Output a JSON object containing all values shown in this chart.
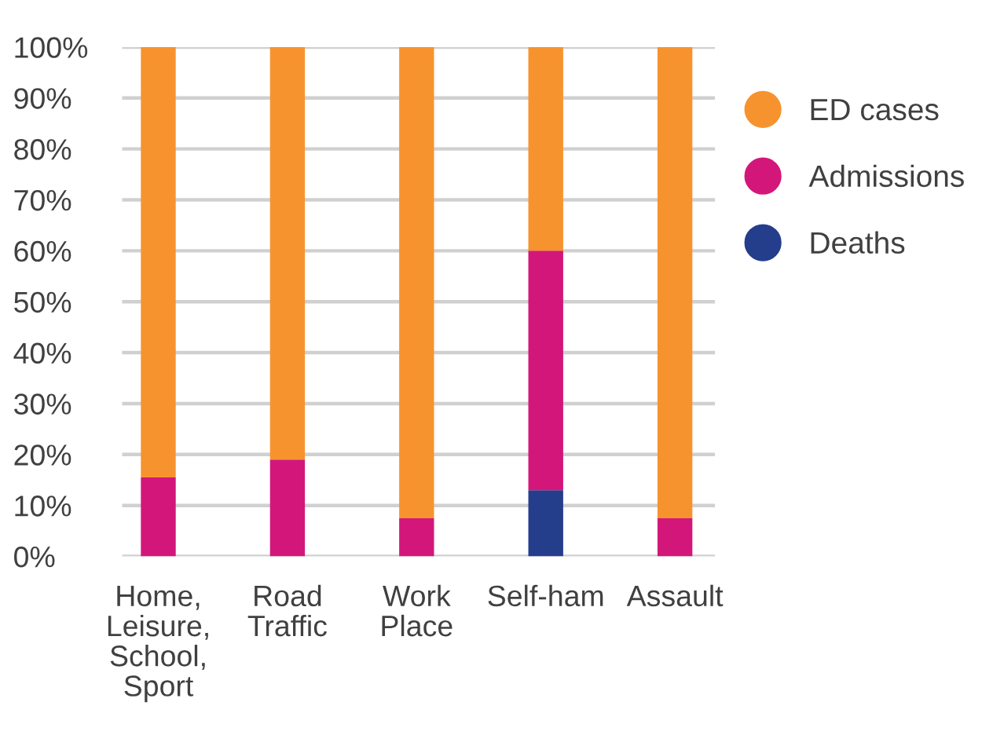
{
  "chart_data": {
    "type": "bar",
    "stacked": true,
    "categories": [
      "Home, Leisure, School, Sport",
      "Road Traffic",
      "Work Place",
      "Self-ham",
      "Assault"
    ],
    "series": [
      {
        "name": "Deaths",
        "color": "#243e8c",
        "values": [
          null,
          null,
          null,
          13,
          null
        ]
      },
      {
        "name": "Admissions",
        "color": "#d3177a",
        "values": [
          15.5,
          19,
          7.5,
          47,
          7.5
        ]
      },
      {
        "name": "ED cases",
        "color": "#f7932f",
        "values": [
          84.5,
          81,
          92.5,
          40,
          92.5
        ]
      }
    ],
    "ylim": [
      0,
      100
    ],
    "yticks": [
      {
        "value": 0,
        "label": "0%"
      },
      {
        "value": 10,
        "label": "10%"
      },
      {
        "value": 20,
        "label": "20%"
      },
      {
        "value": 30,
        "label": "30%"
      },
      {
        "value": 40,
        "label": "40%"
      },
      {
        "value": 50,
        "label": "50%"
      },
      {
        "value": 60,
        "label": "60%"
      },
      {
        "value": 70,
        "label": "70%"
      },
      {
        "value": 80,
        "label": "80%"
      },
      {
        "value": 90,
        "label": "90%"
      },
      {
        "value": 100,
        "label": "100%"
      }
    ],
    "grid": "y",
    "legend": "top right",
    "marker": "circle"
  }
}
